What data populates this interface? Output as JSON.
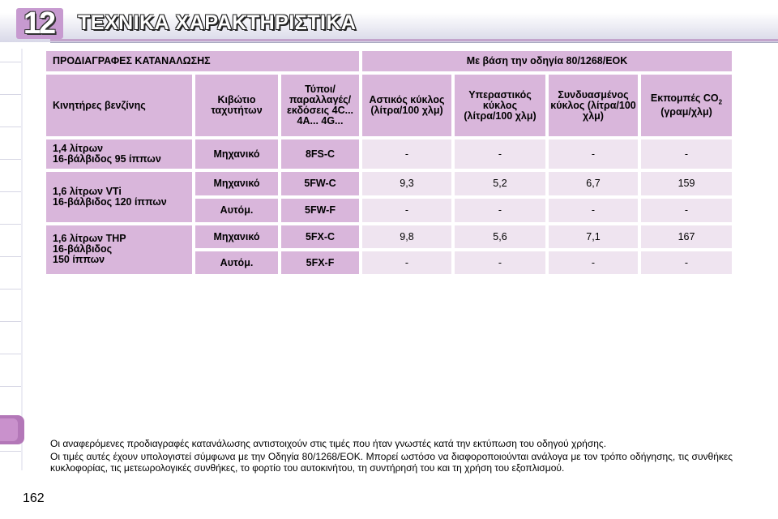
{
  "header": {
    "chapter_number": "12",
    "chapter_title": "ΤΕΧΝΙΚΑ ΧΑΡΑΚΤΗΡΙΣΤΙΚΑ"
  },
  "table": {
    "title_left": "ΠΡΟΔΙΑΓΡΑΦΕΣ ΚΑΤΑΝΑΛΩΣΗΣ",
    "title_right": "Με βάση την οδηγία 80/1268/ΕΟΚ",
    "headers": {
      "engines": "Κινητήρες βενζίνης",
      "gearbox": "Κιβώτιο ταχυτήτων",
      "types": "Τύποι/ παραλλαγές/ εκδόσεις 4C... 4A... 4G...",
      "urban": "Αστικός κύκλος (λίτρα/100 χλμ)",
      "extra_urban": "Υπεραστικός κύκλος (λίτρα/100 χλμ)",
      "combined": "Συνδυασμένος κύκλος (λίτρα/100 χλμ)",
      "co2_main": "Εκπομπές CO",
      "co2_sub": "2",
      "co2_unit": "(γραμ/χλμ)"
    },
    "engines": [
      {
        "line1": "1,4 λίτρων",
        "line2": "16-βάλβιδος 95 ίππων",
        "line3": ""
      },
      {
        "line1": "1,6 λίτρων VTi",
        "line2": "16-βάλβιδος 120 ίππων",
        "line3": ""
      },
      {
        "line1": "1,6 λίτρων THP",
        "line2": "16-βάλβιδος",
        "line3": "150 ίππων"
      }
    ],
    "rows": [
      {
        "gearbox": "Μηχανικό",
        "type": "8FS-C",
        "urban": "-",
        "extra_urban": "-",
        "combined": "-",
        "co2": "-"
      },
      {
        "gearbox": "Μηχανικό",
        "type": "5FW-C",
        "urban": "9,3",
        "extra_urban": "5,2",
        "combined": "6,7",
        "co2": "159"
      },
      {
        "gearbox": "Αυτόμ.",
        "type": "5FW-F",
        "urban": "-",
        "extra_urban": "-",
        "combined": "-",
        "co2": "-"
      },
      {
        "gearbox": "Μηχανικό",
        "type": "5FX-C",
        "urban": "9,8",
        "extra_urban": "5,6",
        "combined": "7,1",
        "co2": "167"
      },
      {
        "gearbox": "Αυτόμ.",
        "type": "5FX-F",
        "urban": "-",
        "extra_urban": "-",
        "combined": "-",
        "co2": "-"
      }
    ]
  },
  "notes": {
    "p1": "Οι αναφερόμενες προδιαγραφές κατανάλωσης αντιστοιχούν στις τιμές που ήταν γνωστές κατά την εκτύπωση του οδηγού χρήσης.",
    "p2": "Οι τιμές αυτές έχουν υπολογιστεί σύμφωνα με την Οδηγία 80/1268/ΕΟΚ. Μπορεί ωστόσο να διαφοροποιούνται ανάλογα με τον τρόπο οδήγησης, τις συνθήκες κυκλοφορίας, τις μετεωρολογικές συνθήκες, το φορτίο του αυτοκινήτου, τη συντήρησή του και τη χρήση του εξοπλισμού."
  },
  "page_number": "162",
  "colors": {
    "header_cell": "#d9b6db",
    "value_cell": "#efe4f0",
    "active_tab": "#b377b8"
  }
}
